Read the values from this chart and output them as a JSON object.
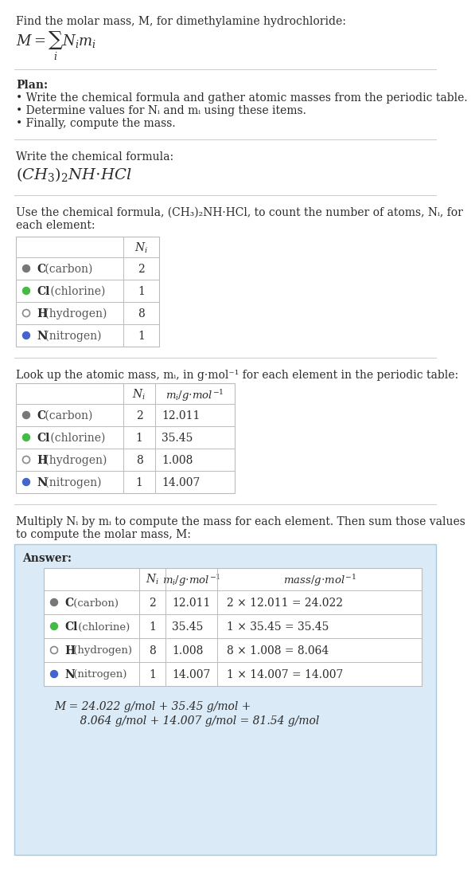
{
  "bg_color": "#ffffff",
  "text_color": "#2b2b2b",
  "gray_text": "#555555",
  "title_line": "Find the molar mass, M, for dimethylamine hydrochloride:",
  "plan_title": "Plan:",
  "plan_bullets": [
    "Write the chemical formula and gather atomic masses from the periodic table.",
    "Determine values for Nᵢ and mᵢ using these items.",
    "Finally, compute the mass."
  ],
  "step1_label": "Write the chemical formula:",
  "step2_label_parts": [
    "Use the chemical formula, (CH₃)₂NH·HCl, to count the number of atoms, Nᵢ, for",
    "each element:"
  ],
  "step3_label": "Look up the atomic mass, mᵢ, in g·mol⁻¹ for each element in the periodic table:",
  "step4_label_parts": [
    "Multiply Nᵢ by mᵢ to compute the mass for each element. Then sum those values",
    "to compute the molar mass, M:"
  ],
  "answer_label": "Answer:",
  "table_rows": [
    {
      "element": "C (carbon)",
      "Ni": "2",
      "mi": "12.011",
      "mass": "2 × 12.011 = 24.022",
      "dot_color": "#777777",
      "dot_style": "filled"
    },
    {
      "element": "Cl (chlorine)",
      "Ni": "1",
      "mi": "35.45",
      "mass": "1 × 35.45 = 35.45",
      "dot_color": "#44bb44",
      "dot_style": "filled"
    },
    {
      "element": "H (hydrogen)",
      "Ni": "8",
      "mi": "1.008",
      "mass": "8 × 1.008 = 8.064",
      "dot_color": "#888888",
      "dot_style": "open"
    },
    {
      "element": "N (nitrogen)",
      "Ni": "1",
      "mi": "14.007",
      "mass": "1 × 14.007 = 14.007",
      "dot_color": "#4466cc",
      "dot_style": "filled"
    }
  ],
  "final_eq_line1": "M = 24.022 g/mol + 35.45 g/mol +",
  "final_eq_line2": "    8.064 g/mol + 14.007 g/mol = 81.54 g/mol",
  "answer_bg": "#daeaf7",
  "separator_color": "#cccccc",
  "table_line_color": "#bbbbbb"
}
